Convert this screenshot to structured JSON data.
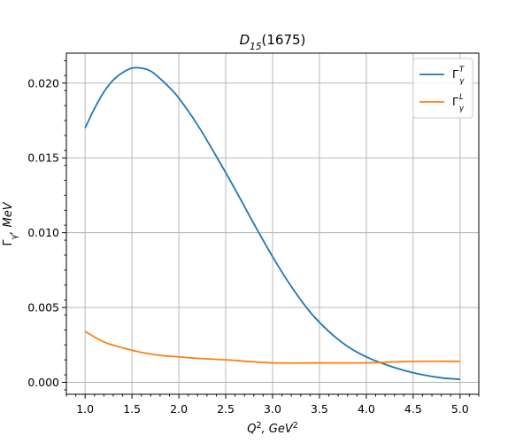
{
  "chart_data": {
    "type": "line",
    "title": "D15(1675)",
    "title_parts": {
      "main": "D",
      "sub": "15",
      "rest": "(1675)"
    },
    "xlabel": "Q2, GeV2",
    "xlabel_parts": {
      "q": "Q",
      "q_sup": "2",
      "sep": ", GeV",
      "gev_sup": "2"
    },
    "ylabel": "Γγ, MeV",
    "ylabel_parts": {
      "gamma": "Γ",
      "gamma_sub": "γ",
      "rest": ", MeV"
    },
    "xlim": [
      0.8,
      5.2
    ],
    "ylim": [
      -0.0008,
      0.022
    ],
    "xticks": [
      1.0,
      1.5,
      2.0,
      2.5,
      3.0,
      3.5,
      4.0,
      4.5,
      5.0
    ],
    "xtick_labels": [
      "1.0",
      "1.5",
      "2.0",
      "2.5",
      "3.0",
      "3.5",
      "4.0",
      "4.5",
      "5.0"
    ],
    "yticks": [
      0.0,
      0.005,
      0.01,
      0.015,
      0.02
    ],
    "ytick_labels": [
      "0.000",
      "0.005",
      "0.010",
      "0.015",
      "0.020"
    ],
    "grid": true,
    "legend_position": "top-right",
    "series": [
      {
        "name": "ΓγT",
        "label_parts": {
          "gamma": "Γ",
          "sub": "γ",
          "sup": "T"
        },
        "color": "#1f77b4",
        "x": [
          1.0,
          1.1,
          1.2,
          1.3,
          1.4,
          1.5,
          1.6,
          1.7,
          1.8,
          1.9,
          2.0,
          2.2,
          2.4,
          2.6,
          2.8,
          3.0,
          3.2,
          3.4,
          3.6,
          3.8,
          4.0,
          4.2,
          4.4,
          4.6,
          4.8,
          5.0
        ],
        "y": [
          0.017,
          0.0183,
          0.0194,
          0.0202,
          0.0207,
          0.021,
          0.021,
          0.0208,
          0.0203,
          0.0197,
          0.019,
          0.0172,
          0.0151,
          0.0129,
          0.0106,
          0.0084,
          0.0064,
          0.0047,
          0.0034,
          0.0024,
          0.0017,
          0.0012,
          0.0008,
          0.0005,
          0.0003,
          0.0002
        ]
      },
      {
        "name": "ΓγL",
        "label_parts": {
          "gamma": "Γ",
          "sub": "γ",
          "sup": "L"
        },
        "color": "#ff7f0e",
        "x": [
          1.0,
          1.2,
          1.4,
          1.6,
          1.8,
          2.0,
          2.2,
          2.5,
          3.0,
          3.5,
          4.0,
          4.5,
          5.0
        ],
        "y": [
          0.0034,
          0.0027,
          0.0023,
          0.002,
          0.0018,
          0.0017,
          0.0016,
          0.0015,
          0.0013,
          0.0013,
          0.0013,
          0.0014,
          0.0014
        ]
      }
    ]
  }
}
